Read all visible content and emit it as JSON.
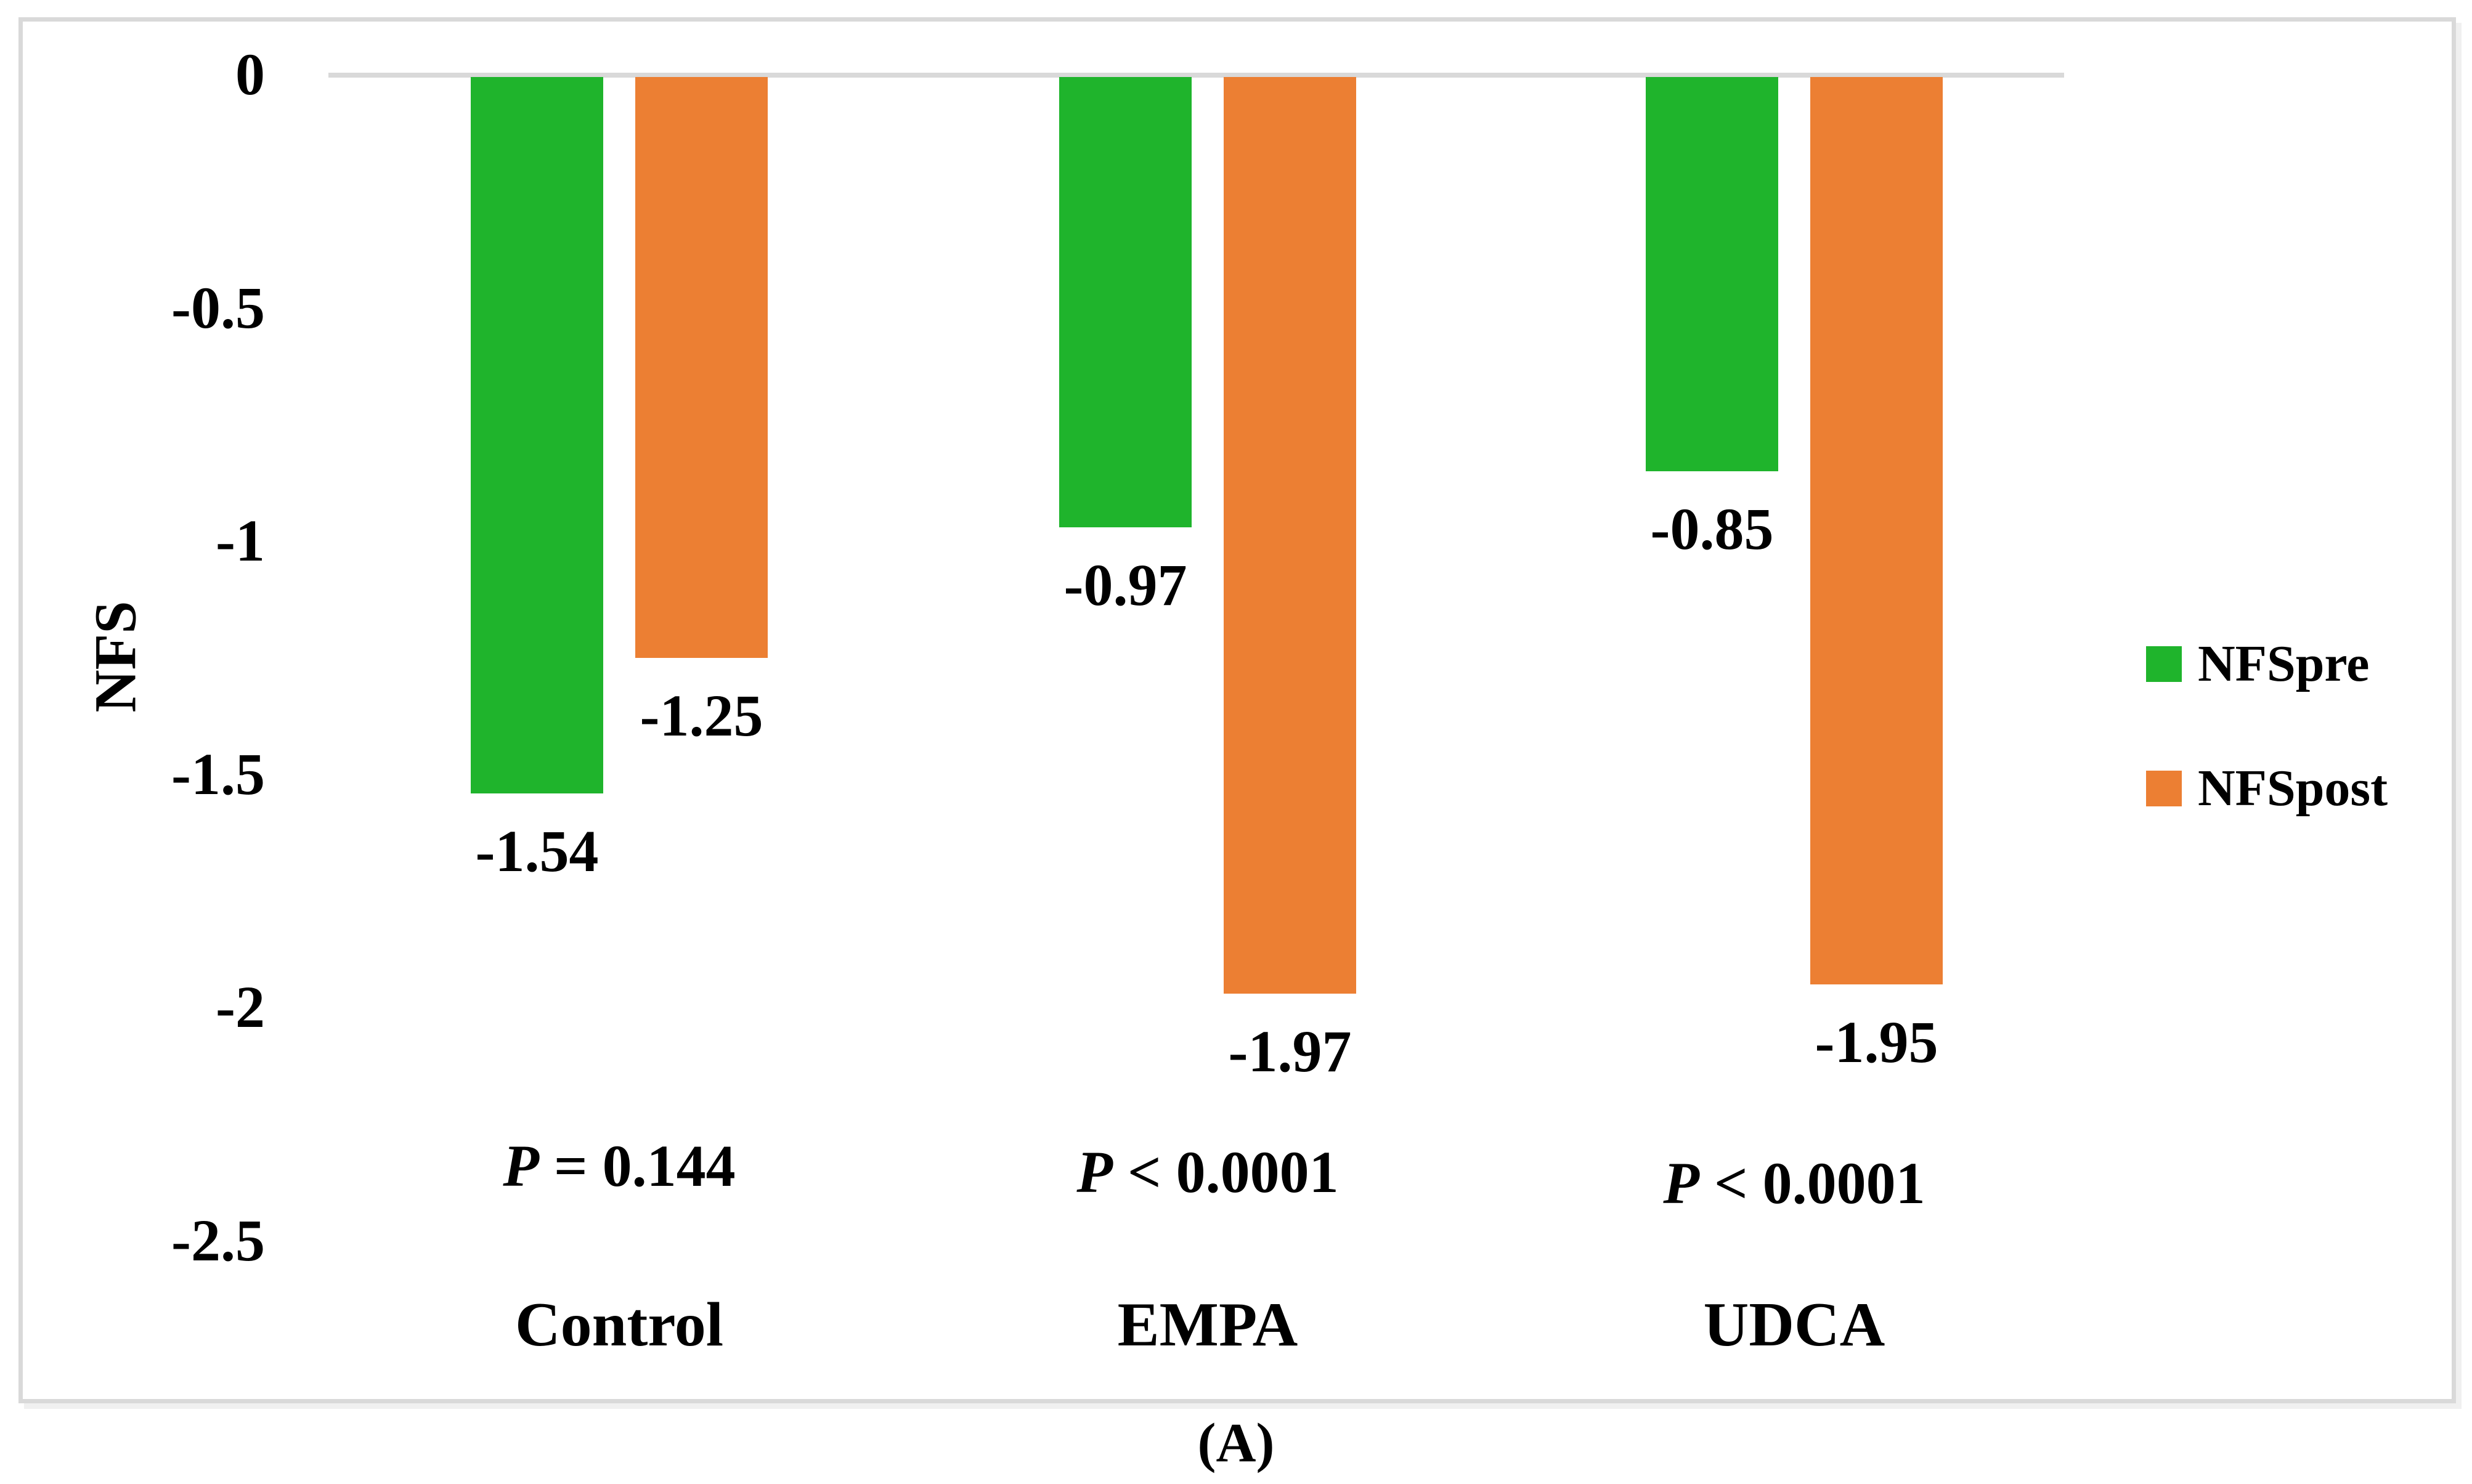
{
  "figure_caption": "(A)",
  "colors": {
    "pre_green": "#1FB42C",
    "post_orange": "#EC7F33",
    "gridline": "#D9D9D9",
    "frame_border": "#D9D9D9",
    "text": "#000000",
    "background": "#FFFFFF"
  },
  "chart_data": {
    "type": "bar",
    "title": "",
    "xlabel": "",
    "ylabel": "NFS",
    "ylim": [
      -2.5,
      0
    ],
    "grid": "zero-line-only",
    "legend_position": "right",
    "yticks": [
      0,
      -0.5,
      -1,
      -1.5,
      -2,
      -2.5
    ],
    "ytick_labels": [
      "0",
      "-0.5",
      "-1",
      "-1.5",
      "-2",
      "-2.5"
    ],
    "categories": [
      "Control",
      "EMPA",
      "UDCA"
    ],
    "series": [
      {
        "name": "NFSpre",
        "color": "#1FB42C",
        "values": [
          -1.54,
          -0.97,
          -0.85
        ]
      },
      {
        "name": "NFSpost",
        "color": "#EC7F33",
        "values": [
          -1.25,
          -1.97,
          -1.95
        ]
      }
    ],
    "data_labels": [
      [
        "-1.54",
        "-0.97",
        "-0.85"
      ],
      [
        "-1.25",
        "-1.97",
        "-1.95"
      ]
    ],
    "p_values": [
      {
        "prefix": "P",
        "rest": " = 0.144"
      },
      {
        "prefix": "P",
        "rest": " < 0.0001"
      },
      {
        "prefix": "P",
        "rest": " < 0.0001"
      }
    ]
  }
}
